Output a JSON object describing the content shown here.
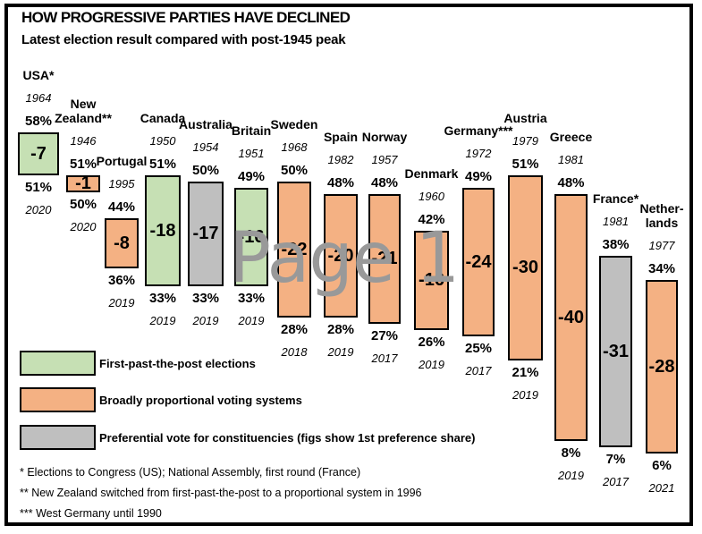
{
  "page": {
    "title": "HOW PROGRESSIVE PARTIES HAVE DECLINED",
    "subtitle": "Latest election result compared with post-1945 peak",
    "watermark": "Page 1"
  },
  "colors": {
    "fptp": "#c6e0b4",
    "proportional": "#f4b183",
    "preferential": "#bfbfbf",
    "bar_border": "#000000",
    "watermark": "#999999"
  },
  "legend": [
    {
      "label": "First-past-the-post elections",
      "color_key": "fptp"
    },
    {
      "label": "Broadly proportional voting systems",
      "color_key": "proportional"
    },
    {
      "label": "Preferential vote for constituencies (figs show 1st preference share)",
      "color_key": "preferential"
    }
  ],
  "footnotes": [
    "* Elections to Congress (US); National Assembly, first round (France)",
    "** New Zealand switched from first-past-the-post to a proportional system in 1996",
    "*** West Germany until 1990"
  ],
  "chart_data": {
    "type": "bar",
    "title": "HOW PROGRESSIVE PARTIES HAVE DECLINED",
    "subtitle": "Latest election result compared with post-1945 peak",
    "unit": "percent of vote",
    "bar_style": "floating bars spanning from post-1945 peak share down to latest share; in-bar label is percentage-point change",
    "legend_position": "bottom-left",
    "value_range": [
      6,
      58
    ],
    "countries": [
      {
        "name": "USA*",
        "system": "fptp",
        "peak_year": "1964",
        "peak_pct": 58,
        "change": -7,
        "latest_pct": 51,
        "latest_year": "2020"
      },
      {
        "name": "New Zealand**",
        "system": "proportional",
        "peak_year": "1946",
        "peak_pct": 51,
        "change": -1,
        "latest_pct": 50,
        "latest_year": "2020"
      },
      {
        "name": "Portugal",
        "system": "proportional",
        "peak_year": "1995",
        "peak_pct": 44,
        "change": -8,
        "latest_pct": 36,
        "latest_year": "2019"
      },
      {
        "name": "Canada",
        "system": "fptp",
        "peak_year": "1950",
        "peak_pct": 51,
        "change": -18,
        "latest_pct": 33,
        "latest_year": "2019"
      },
      {
        "name": "Australia",
        "system": "preferential",
        "peak_year": "1954",
        "peak_pct": 50,
        "change": -17,
        "latest_pct": 33,
        "latest_year": "2019"
      },
      {
        "name": "Britain",
        "system": "fptp",
        "peak_year": "1951",
        "peak_pct": 49,
        "change": -16,
        "latest_pct": 33,
        "latest_year": "2019"
      },
      {
        "name": "Sweden",
        "system": "proportional",
        "peak_year": "1968",
        "peak_pct": 50,
        "change": -22,
        "latest_pct": 28,
        "latest_year": "2018"
      },
      {
        "name": "Spain",
        "system": "proportional",
        "peak_year": "1982",
        "peak_pct": 48,
        "change": -20,
        "latest_pct": 28,
        "latest_year": "2019"
      },
      {
        "name": "Norway",
        "system": "proportional",
        "peak_year": "1957",
        "peak_pct": 48,
        "change": -21,
        "latest_pct": 27,
        "latest_year": "2017"
      },
      {
        "name": "Denmark",
        "system": "proportional",
        "peak_year": "1960",
        "peak_pct": 42,
        "change": -16,
        "latest_pct": 26,
        "latest_year": "2019"
      },
      {
        "name": "Germany***",
        "system": "proportional",
        "peak_year": "1972",
        "peak_pct": 49,
        "change": -24,
        "latest_pct": 25,
        "latest_year": "2017"
      },
      {
        "name": "Austria",
        "system": "proportional",
        "peak_year": "1979",
        "peak_pct": 51,
        "change": -30,
        "latest_pct": 21,
        "latest_year": "2019"
      },
      {
        "name": "Greece",
        "system": "proportional",
        "peak_year": "1981",
        "peak_pct": 48,
        "change": -40,
        "latest_pct": 8,
        "latest_year": "2019"
      },
      {
        "name": "France*",
        "system": "preferential",
        "peak_year": "1981",
        "peak_pct": 38,
        "change": -31,
        "latest_pct": 7,
        "latest_year": "2017"
      },
      {
        "name": "Nether-lands",
        "system": "proportional",
        "peak_year": "1977",
        "peak_pct": 34,
        "change": -28,
        "latest_pct": 6,
        "latest_year": "2021"
      }
    ]
  }
}
